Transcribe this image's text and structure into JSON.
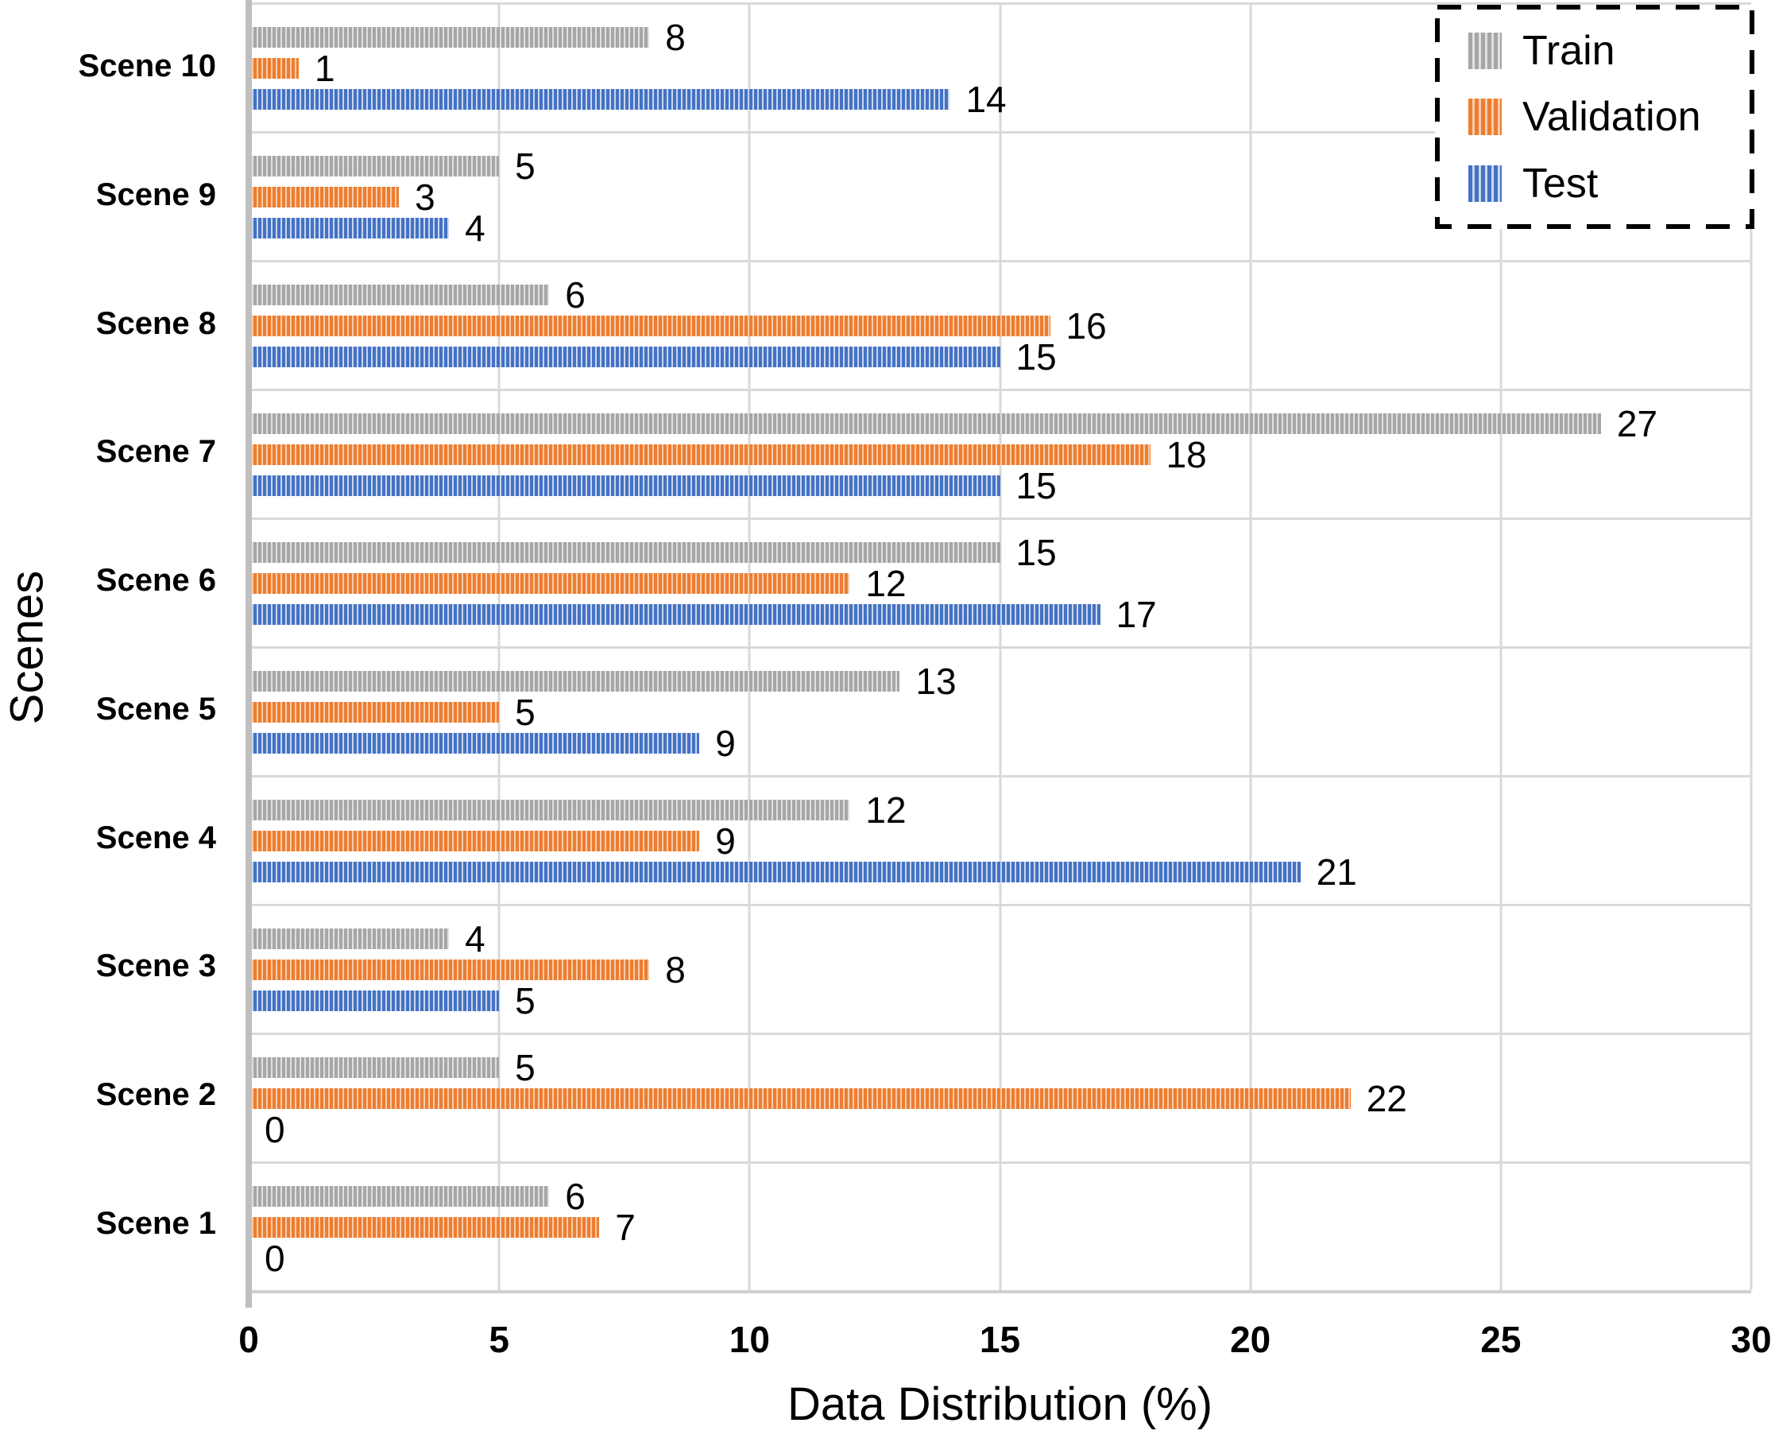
{
  "chart_data": {
    "type": "bar",
    "orientation": "horizontal",
    "title": "",
    "xlabel": "Data Distribution (%)",
    "ylabel": "Scenes",
    "xlim": [
      0,
      30
    ],
    "xticks": [
      0,
      5,
      10,
      15,
      20,
      25,
      30
    ],
    "grid": true,
    "data_labels_shown": true,
    "legend": {
      "position": "top-right",
      "border_style": "dashed",
      "entries": [
        "Train",
        "Validation",
        "Test"
      ]
    },
    "categories": [
      "Scene 10",
      "Scene 9",
      "Scene 8",
      "Scene 7",
      "Scene 6",
      "Scene 5",
      "Scene 4",
      "Scene 3",
      "Scene 2",
      "Scene 1"
    ],
    "series": [
      {
        "name": "Train",
        "color": "#A6A6A6",
        "stripe_light": "#E0E0E0",
        "values": [
          8,
          5,
          6,
          27,
          15,
          13,
          12,
          4,
          5,
          6
        ]
      },
      {
        "name": "Validation",
        "color": "#ED7D31",
        "stripe_light": "#F7CDAC",
        "values": [
          1,
          3,
          16,
          18,
          12,
          5,
          9,
          8,
          22,
          7
        ]
      },
      {
        "name": "Test",
        "color": "#4472C4",
        "stripe_light": "#C9D6EE",
        "values": [
          14,
          4,
          15,
          15,
          17,
          9,
          21,
          5,
          0,
          0
        ]
      }
    ]
  },
  "axis": {
    "x_title": "Data Distribution (%)",
    "y_title": "Scenes"
  },
  "colors": {
    "background": "#FFFFFF",
    "gridline": "#D9D9D9",
    "axis_line": "#BFBFBF",
    "text": "#000000",
    "legend_border": "#000000"
  }
}
